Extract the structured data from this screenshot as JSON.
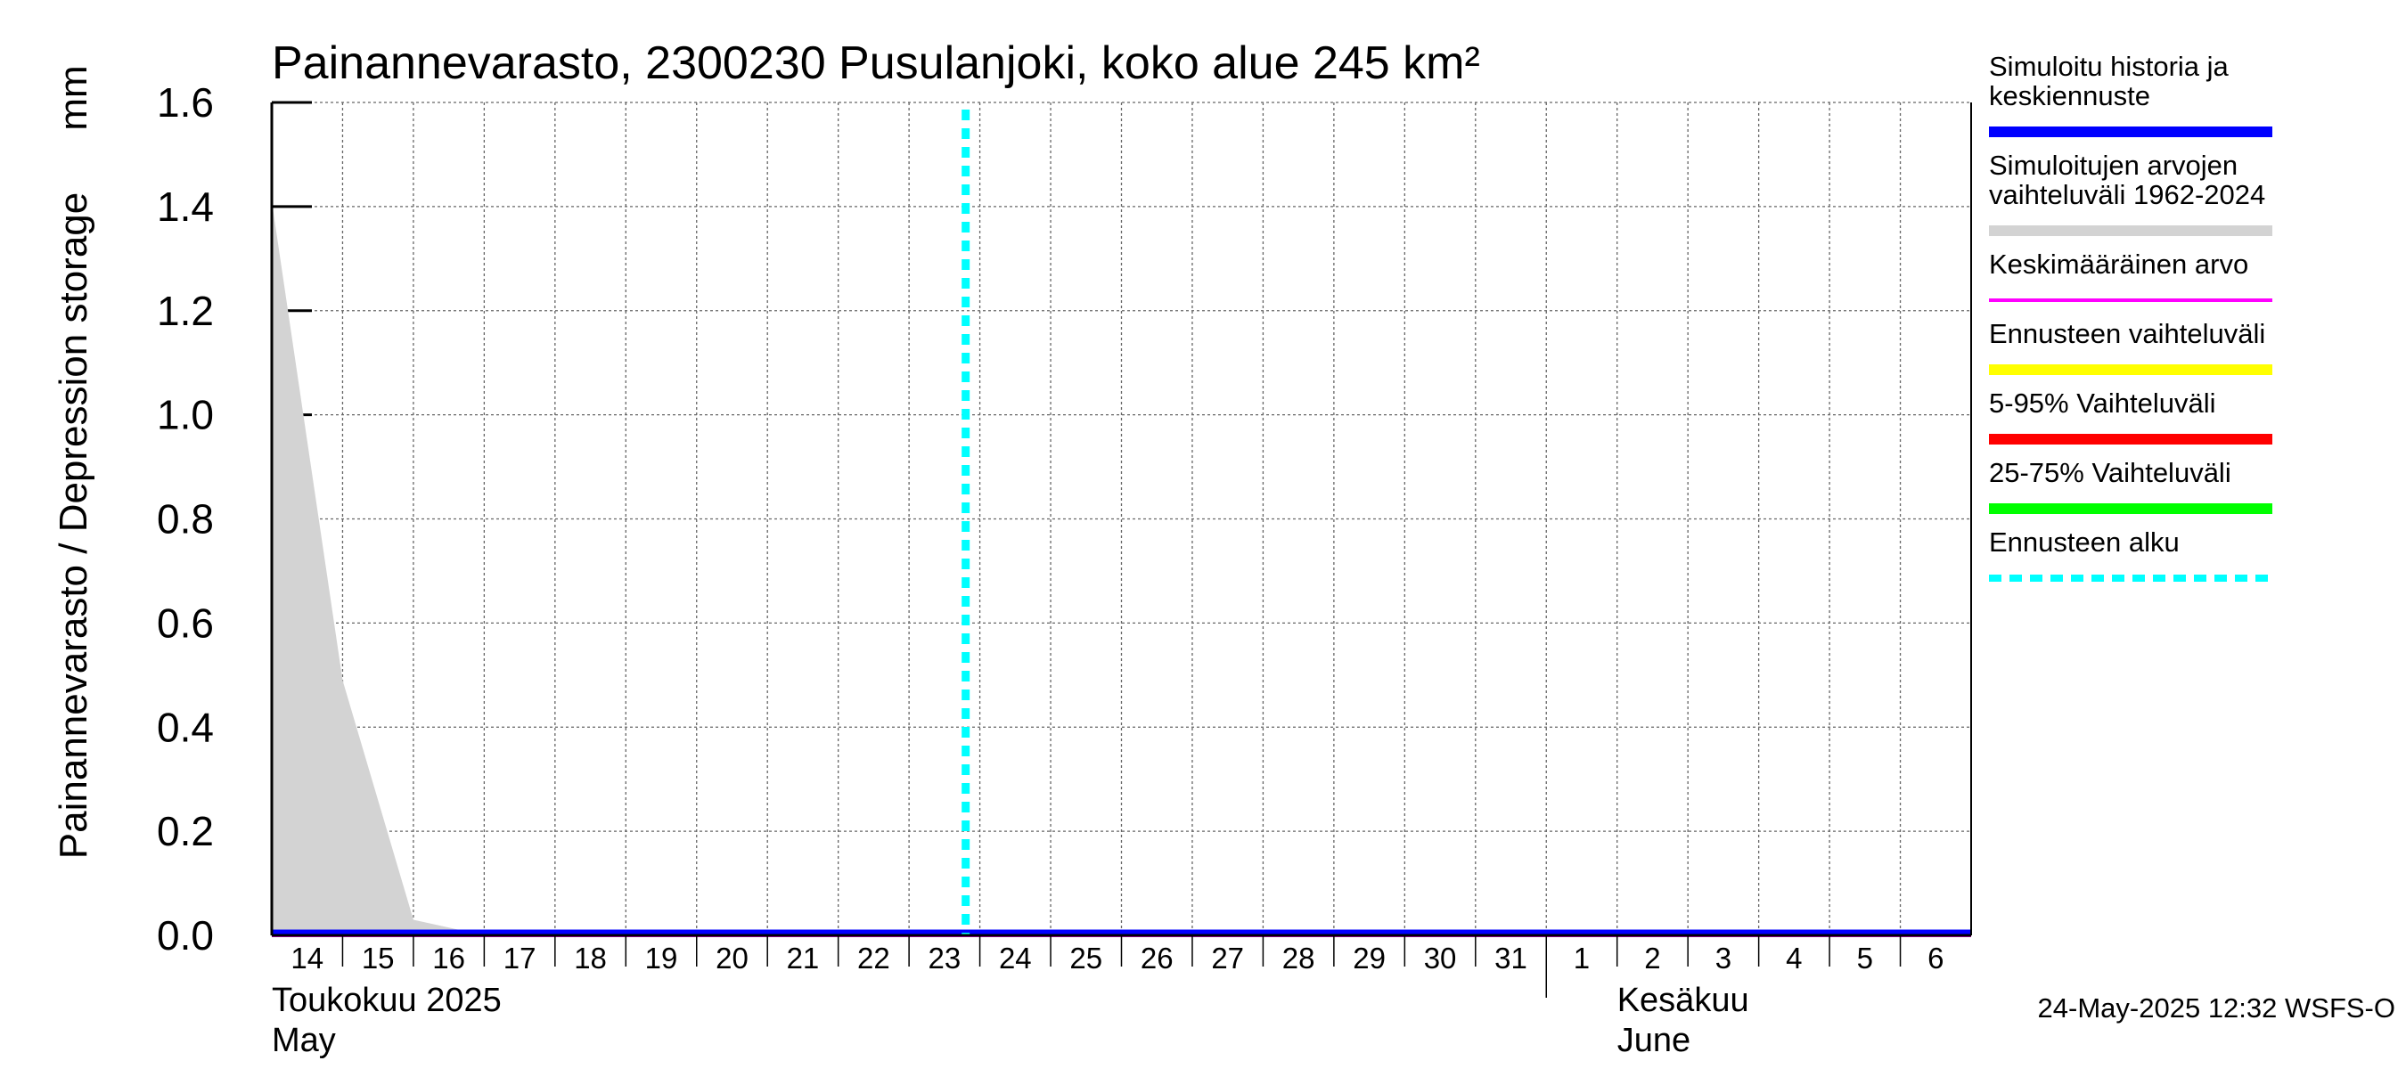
{
  "chart_data": {
    "type": "area",
    "title": "Painannevarasto, 2300230 Pusulanjoki, koko alue 245 km²",
    "ylabel": "Painannevarasto / Depression storage",
    "yunit": "mm",
    "ylim": [
      0,
      1.6
    ],
    "yticks": [
      "0.0",
      "0.2",
      "0.4",
      "0.6",
      "0.8",
      "1.0",
      "1.2",
      "1.4",
      "1.6"
    ],
    "xlim": [
      "2025-05-14",
      "2025-06-07"
    ],
    "x_tick_labels": [
      "14",
      "15",
      "16",
      "17",
      "18",
      "19",
      "20",
      "21",
      "22",
      "23",
      "24",
      "25",
      "26",
      "27",
      "28",
      "29",
      "30",
      "31",
      "1",
      "2",
      "3",
      "4",
      "5",
      "6"
    ],
    "months": [
      {
        "fi": "Toukokuu  2025",
        "en": "May"
      },
      {
        "fi": "Kesäkuu",
        "en": "June"
      }
    ],
    "grid": true,
    "legend_position": "right",
    "forecast_start": "2025-05-24",
    "series": [
      {
        "name": "Simuloitujen arvojen vaihteluväli 1962-2024",
        "type": "band",
        "color": "#d3d3d3",
        "x": [
          "2025-05-14",
          "2025-05-15",
          "2025-05-16",
          "2025-05-17",
          "2025-06-07"
        ],
        "y_upper": [
          1.41,
          0.49,
          0.03,
          0.0,
          0.0
        ],
        "y_lower": [
          0,
          0,
          0,
          0,
          0
        ]
      },
      {
        "name": "Keskimääräinen arvo",
        "type": "line",
        "color": "#ff00ff",
        "x": [
          "2025-05-14",
          "2025-06-07"
        ],
        "y": [
          0.0,
          0.0
        ]
      },
      {
        "name": "Simuloitu historia ja keskiennuste",
        "type": "line",
        "color": "#0000ff",
        "x": [
          "2025-05-14",
          "2025-06-07"
        ],
        "y": [
          0.0,
          0.0
        ]
      }
    ],
    "legend": [
      {
        "lines": [
          "Simuloitu historia ja",
          "keskiennuste"
        ],
        "color": "#0000ff",
        "style": "solid"
      },
      {
        "lines": [
          "Simuloitujen arvojen",
          "vaihteluväli 1962-2024"
        ],
        "color": "#d3d3d3",
        "style": "solid"
      },
      {
        "lines": [
          "Keskimääräinen arvo"
        ],
        "color": "#ff00ff",
        "style": "thin"
      },
      {
        "lines": [
          "Ennusteen vaihteluväli"
        ],
        "color": "#ffff00",
        "style": "solid"
      },
      {
        "lines": [
          "5-95% Vaihteluväli"
        ],
        "color": "#ff0000",
        "style": "solid"
      },
      {
        "lines": [
          "25-75% Vaihteluväli"
        ],
        "color": "#00ff00",
        "style": "solid"
      },
      {
        "lines": [
          "Ennusteen alku"
        ],
        "color": "#00ffff",
        "style": "dashed"
      }
    ],
    "footer": "24-May-2025 12:32 WSFS-O"
  }
}
